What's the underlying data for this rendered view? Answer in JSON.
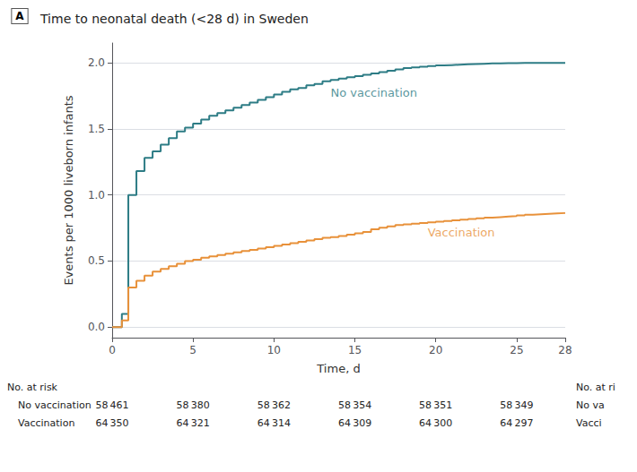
{
  "chart_data": {
    "type": "step",
    "title": "Time to neonatal death (<28 d) in Sweden",
    "panel_label": "A",
    "x_label": "Time, d",
    "y_label": "Events per 1000 liveborn infants",
    "xlim": [
      0,
      28
    ],
    "ylim": [
      -0.08,
      2.15
    ],
    "xticks": [
      0,
      5,
      10,
      15,
      20,
      25,
      28
    ],
    "yticks": [
      {
        "value": 0,
        "label": "0.0"
      },
      0.5,
      {
        "value": 1.0,
        "label": "1.0"
      },
      1.5,
      {
        "value": 2.0,
        "label": "2.0"
      }
    ],
    "grid": true,
    "x": [
      0,
      0.3,
      0.6,
      1.0,
      1.5,
      2.0,
      2.5,
      3.0,
      3.5,
      4.0,
      4.5,
      5.0,
      5.5,
      6.0,
      6.5,
      7.0,
      7.5,
      8.0,
      8.5,
      9.0,
      9.5,
      10.0,
      10.5,
      11.0,
      11.5,
      12.0,
      12.5,
      13.0,
      13.5,
      14.0,
      14.5,
      15.0,
      15.5,
      16.0,
      16.5,
      17.0,
      17.5,
      18.0,
      18.5,
      19.0,
      19.5,
      20.0,
      20.5,
      21.0,
      21.5,
      22.0,
      22.5,
      23.0,
      23.5,
      24.0,
      24.5,
      25.0,
      25.5,
      26.0,
      26.5,
      27.0,
      27.5,
      28.0
    ],
    "series": [
      {
        "name": "No vaccination",
        "color": "#2d7c85",
        "values": [
          0,
          0.0,
          0.1,
          1.0,
          1.18,
          1.28,
          1.33,
          1.38,
          1.43,
          1.48,
          1.51,
          1.54,
          1.57,
          1.6,
          1.62,
          1.64,
          1.66,
          1.68,
          1.7,
          1.72,
          1.74,
          1.76,
          1.78,
          1.8,
          1.81,
          1.83,
          1.84,
          1.86,
          1.87,
          1.88,
          1.89,
          1.9,
          1.91,
          1.92,
          1.93,
          1.94,
          1.95,
          1.96,
          1.965,
          1.97,
          1.975,
          1.98,
          1.983,
          1.986,
          1.989,
          1.991,
          1.993,
          1.995,
          1.996,
          1.997,
          1.998,
          1.999,
          2.0,
          2.0,
          2.0,
          2.0,
          2.0,
          2.0
        ]
      },
      {
        "name": "Vaccination",
        "color": "#e8913a",
        "values": [
          0,
          0.0,
          0.05,
          0.3,
          0.35,
          0.39,
          0.42,
          0.44,
          0.46,
          0.48,
          0.5,
          0.51,
          0.525,
          0.535,
          0.545,
          0.555,
          0.565,
          0.575,
          0.585,
          0.595,
          0.605,
          0.615,
          0.625,
          0.635,
          0.645,
          0.655,
          0.665,
          0.675,
          0.68,
          0.69,
          0.7,
          0.71,
          0.72,
          0.74,
          0.752,
          0.763,
          0.772,
          0.778,
          0.783,
          0.788,
          0.793,
          0.798,
          0.803,
          0.808,
          0.813,
          0.818,
          0.823,
          0.828,
          0.832,
          0.836,
          0.84,
          0.845,
          0.85,
          0.854,
          0.857,
          0.86,
          0.863,
          0.866
        ]
      }
    ],
    "annotations": [
      {
        "text": "No vaccination",
        "x": 13.5,
        "y": 1.73,
        "color": "#2d7c85"
      },
      {
        "text": "Vaccination",
        "x": 19.5,
        "y": 0.67,
        "color": "#e8913a"
      }
    ],
    "risk_table": {
      "header": "No. at risk",
      "time_points": [
        0,
        5,
        10,
        15,
        20,
        25
      ],
      "rows": [
        {
          "label": "No vaccination",
          "values": [
            "58 461",
            "58 380",
            "58 362",
            "58 354",
            "58 351",
            "58 349"
          ]
        },
        {
          "label": "Vaccination",
          "values": [
            "64 350",
            "64 321",
            "64 314",
            "64 309",
            "64 300",
            "64 297"
          ]
        }
      ]
    },
    "clipped_labels": [
      "No. at ri",
      "No va",
      "Vacci"
    ]
  }
}
